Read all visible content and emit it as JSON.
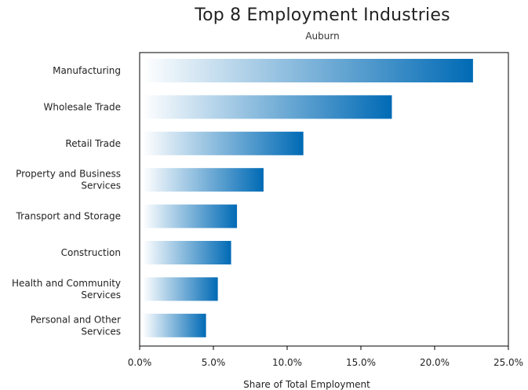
{
  "chart_data": {
    "type": "bar",
    "orientation": "horizontal",
    "title": "Top 8 Employment Industries",
    "subtitle": "Auburn",
    "xlabel": "Share of Total Employment",
    "ylabel": "",
    "categories": [
      [
        "Manufacturing"
      ],
      [
        "Wholesale Trade"
      ],
      [
        "Retail Trade"
      ],
      [
        "Property and Business",
        "Services"
      ],
      [
        "Transport and Storage"
      ],
      [
        "Construction"
      ],
      [
        "Health and Community",
        "Services"
      ],
      [
        "Personal and Other",
        "Services"
      ]
    ],
    "values": [
      22.6,
      17.1,
      11.1,
      8.4,
      6.6,
      6.2,
      5.3,
      4.5
    ],
    "xlim": [
      0,
      25
    ],
    "xticks": [
      0,
      5,
      10,
      15,
      20,
      25
    ],
    "xtick_labels": [
      "0.0%",
      "5.0%",
      "10.0%",
      "15.0%",
      "20.0%",
      "25.0%"
    ],
    "grid": false,
    "legend": "none",
    "colors": {
      "bar_start": "#ffffff",
      "bar_end": "#006ab5",
      "axis": "#000000"
    }
  }
}
